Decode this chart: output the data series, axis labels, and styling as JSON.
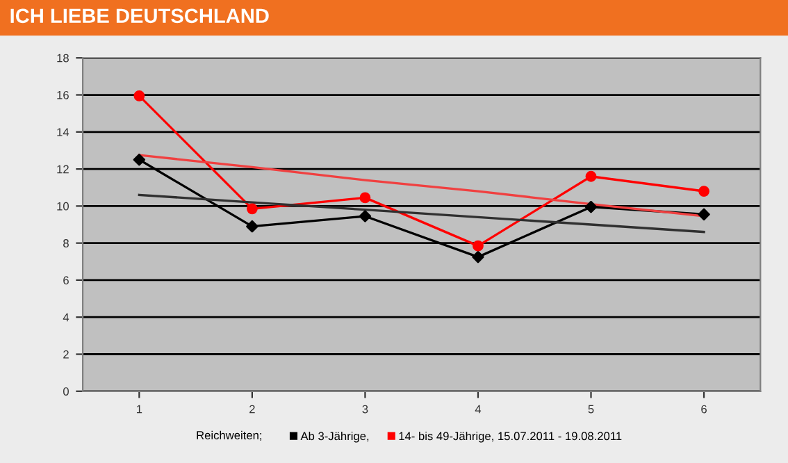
{
  "chart_data": {
    "type": "line",
    "title": "ICH LIEBE DEUTSCHLAND",
    "x": [
      1,
      2,
      3,
      4,
      5,
      6
    ],
    "series": [
      {
        "name": "Ab 3-Jährige,",
        "color": "#000000",
        "marker": "diamond",
        "values": [
          12.5,
          8.9,
          9.45,
          7.25,
          9.95,
          9.55
        ]
      },
      {
        "name": "14- bis 49-Jährige, 15.07.2011 - 19.08.2011",
        "color": "#ff0000",
        "marker": "circle",
        "values": [
          15.95,
          9.85,
          10.45,
          7.85,
          11.6,
          10.8
        ]
      },
      {
        "type": "line",
        "color": "#303030",
        "marker": "none",
        "values": [
          10.6,
          10.2,
          9.8,
          9.4,
          9.0,
          8.6
        ]
      },
      {
        "type": "line",
        "color": "#f04040",
        "marker": "none",
        "values": [
          12.75,
          12.1,
          11.4,
          10.8,
          10.1,
          9.45
        ]
      }
    ],
    "annotations": [
      "Reichweiten;"
    ],
    "xlim": [
      0.5,
      6.5
    ],
    "xticks": [
      1,
      2,
      3,
      4,
      5,
      6
    ],
    "ylim": [
      0,
      18
    ],
    "yticks": [
      0,
      2,
      4,
      6,
      8,
      10,
      12,
      14,
      16,
      18
    ],
    "grid": "y",
    "legend": "bottom"
  }
}
